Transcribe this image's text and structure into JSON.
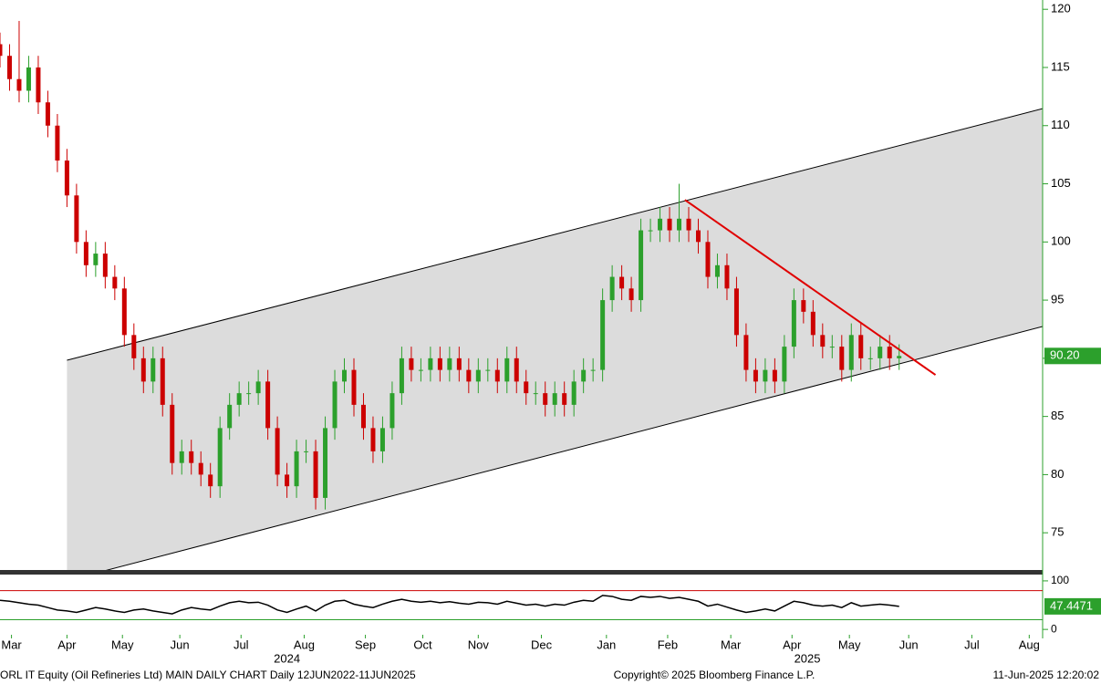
{
  "chart_data": {
    "type": "candlestick",
    "footer_left": "ORL IT Equity (Oil Refineries Ltd) MAIN DAILY CHART  Daily 12JUN2022-11JUN2025",
    "footer_center": "Copyright© 2025 Bloomberg Finance L.P.",
    "footer_right": "11-Jun-2025 12:20:02",
    "xlim": [
      0,
      545
    ],
    "xticks": [
      {
        "value": 6,
        "label": "Mar"
      },
      {
        "value": 35,
        "label": "Apr"
      },
      {
        "value": 64,
        "label": "May"
      },
      {
        "value": 94,
        "label": "Jun"
      },
      {
        "value": 126,
        "label": "Jul"
      },
      {
        "value": 159,
        "label": "Aug"
      },
      {
        "value": 191,
        "label": "Sep"
      },
      {
        "value": 221,
        "label": "Oct"
      },
      {
        "value": 250,
        "label": "Nov"
      },
      {
        "value": 283,
        "label": "Dec"
      },
      {
        "value": 317,
        "label": "Jan"
      },
      {
        "value": 349,
        "label": "Feb"
      },
      {
        "value": 382,
        "label": "Mar"
      },
      {
        "value": 414,
        "label": "Apr"
      },
      {
        "value": 444,
        "label": "May"
      },
      {
        "value": 475,
        "label": "Jun"
      },
      {
        "value": 508,
        "label": "Jul"
      },
      {
        "value": 538,
        "label": "Aug"
      }
    ],
    "year_labels": [
      {
        "value": 150,
        "label": "2024"
      },
      {
        "value": 422,
        "label": "2025"
      }
    ],
    "ylim": [
      71.8,
      120.8
    ],
    "yticks": [
      75,
      80,
      85,
      90,
      95,
      100,
      105,
      110,
      115,
      120
    ],
    "up_color": "#2ca02c",
    "down_color": "#cc0000",
    "x": [
      0,
      5,
      10,
      15,
      20,
      25,
      30,
      35,
      40,
      45,
      50,
      55,
      60,
      65,
      70,
      75,
      80,
      85,
      90,
      95,
      100,
      105,
      110,
      115,
      120,
      125,
      130,
      135,
      140,
      145,
      150,
      155,
      160,
      165,
      170,
      175,
      180,
      185,
      190,
      195,
      200,
      205,
      210,
      215,
      220,
      225,
      230,
      235,
      240,
      245,
      250,
      255,
      260,
      265,
      270,
      275,
      280,
      285,
      290,
      295,
      300,
      305,
      310,
      315,
      320,
      325,
      330,
      335,
      340,
      345,
      350,
      355,
      360,
      365,
      370,
      375,
      380,
      385,
      390,
      395,
      400,
      405,
      410,
      415,
      420,
      425,
      430,
      435,
      440,
      445,
      450,
      455,
      460,
      465,
      470
    ],
    "open": [
      117,
      116,
      114,
      113,
      115,
      112,
      110,
      107,
      104,
      100,
      98,
      99,
      97,
      96,
      92,
      90,
      88,
      90,
      86,
      81,
      82,
      81,
      80,
      79,
      84,
      86,
      87,
      87,
      88,
      84,
      80,
      79,
      82,
      82,
      78,
      84,
      88,
      89,
      86,
      84,
      82,
      84,
      87,
      90,
      89,
      89,
      90,
      89,
      90,
      89,
      88,
      89,
      89,
      88,
      90,
      88,
      87,
      87,
      86,
      87,
      86,
      88,
      89,
      89,
      95,
      97,
      96,
      95,
      101,
      101,
      102,
      101,
      102,
      101,
      100,
      97,
      98,
      96,
      92,
      89,
      88,
      89,
      88,
      91,
      95,
      94,
      92,
      91,
      91,
      89,
      92,
      90,
      90,
      91,
      90
    ],
    "high": [
      118,
      117,
      119,
      116,
      116,
      113,
      111,
      108,
      105,
      101,
      100,
      100,
      98,
      97,
      93,
      91,
      91,
      91,
      87,
      83,
      83,
      82,
      81,
      85,
      87,
      88,
      88,
      89,
      89,
      85,
      81,
      83,
      83,
      83,
      85,
      89,
      90,
      90,
      87,
      85,
      85,
      88,
      91,
      91,
      90,
      91,
      91,
      91,
      91,
      90,
      90,
      90,
      90,
      91,
      91,
      89,
      88,
      88,
      88,
      88,
      89,
      90,
      90,
      96,
      98,
      98,
      97,
      102,
      102,
      103,
      103,
      105,
      103,
      102,
      101,
      99,
      99,
      97,
      93,
      90,
      90,
      90,
      92,
      96,
      96,
      95,
      93,
      92,
      92,
      93,
      93,
      91,
      92,
      92,
      91.2
    ],
    "low": [
      115,
      113,
      112,
      112,
      111,
      109,
      106,
      103,
      99,
      97,
      97,
      96,
      95,
      91,
      89,
      87,
      87,
      85,
      80,
      80,
      80,
      79,
      78,
      78,
      83,
      85,
      86,
      86,
      83,
      79,
      78,
      78,
      81,
      77,
      77,
      83,
      87,
      85,
      83,
      81,
      81,
      83,
      86,
      88,
      88,
      88,
      88,
      88,
      88,
      87,
      87,
      88,
      87,
      87,
      87,
      86,
      86,
      85,
      85,
      85,
      85,
      87,
      88,
      88,
      94,
      95,
      94,
      94,
      100,
      100,
      100,
      100,
      100,
      99,
      96,
      96,
      95,
      91,
      88,
      87,
      87,
      87,
      87,
      90,
      93,
      91,
      90,
      90,
      88,
      88,
      89,
      89,
      89,
      89,
      89
    ],
    "close": [
      116,
      114,
      113,
      115,
      112,
      110,
      107,
      104,
      100,
      98,
      99,
      97,
      96,
      92,
      90,
      88,
      90,
      86,
      81,
      82,
      81,
      80,
      79,
      84,
      86,
      87,
      87,
      88,
      84,
      80,
      79,
      82,
      82,
      78,
      84,
      88,
      89,
      86,
      84,
      82,
      84,
      87,
      90,
      89,
      89,
      90,
      89,
      90,
      89,
      88,
      89,
      89,
      88,
      90,
      88,
      87,
      87,
      86,
      87,
      86,
      88,
      89,
      89,
      95,
      97,
      96,
      95,
      101,
      101,
      102,
      101,
      102,
      101,
      100,
      97,
      98,
      96,
      92,
      89,
      88,
      89,
      88,
      91,
      95,
      94,
      92,
      91,
      91,
      89,
      92,
      90,
      90,
      91,
      90,
      90.2
    ],
    "last_price_label": "90.20",
    "last_price_color": "#2ca02c",
    "channel": {
      "color": "#dcdcdc",
      "upper": {
        "x": [
          35,
          545
        ],
        "y": [
          89.83,
          111.46
        ]
      },
      "lower": {
        "x": [
          35,
          545
        ],
        "y": [
          70.89,
          92.73
        ]
      }
    },
    "trendline": {
      "color": "#e00000",
      "x": [
        358,
        489
      ],
      "y": [
        103.62,
        88.57
      ]
    },
    "rsi": {
      "color": "#000000",
      "ylim": [
        -11,
        113
      ],
      "yticks": [
        0,
        100
      ],
      "levels": [
        20,
        80
      ],
      "level_colors": [
        "#2ca02c",
        "#cc0000"
      ],
      "label_color": "#2ca02c",
      "values": [
        60,
        58,
        55,
        52,
        50,
        45,
        40,
        38,
        35,
        40,
        45,
        42,
        38,
        35,
        40,
        42,
        38,
        35,
        32,
        40,
        45,
        42,
        40,
        48,
        55,
        58,
        55,
        56,
        50,
        40,
        35,
        42,
        48,
        38,
        50,
        58,
        60,
        52,
        48,
        45,
        52,
        58,
        62,
        58,
        56,
        58,
        55,
        57,
        54,
        52,
        56,
        55,
        52,
        58,
        54,
        50,
        52,
        48,
        52,
        50,
        56,
        60,
        58,
        70,
        68,
        62,
        60,
        68,
        66,
        68,
        64,
        66,
        62,
        58,
        48,
        52,
        46,
        40,
        35,
        38,
        42,
        38,
        48,
        58,
        55,
        50,
        48,
        50,
        45,
        55,
        48,
        50,
        52,
        50,
        47.4471
      ]
    }
  }
}
